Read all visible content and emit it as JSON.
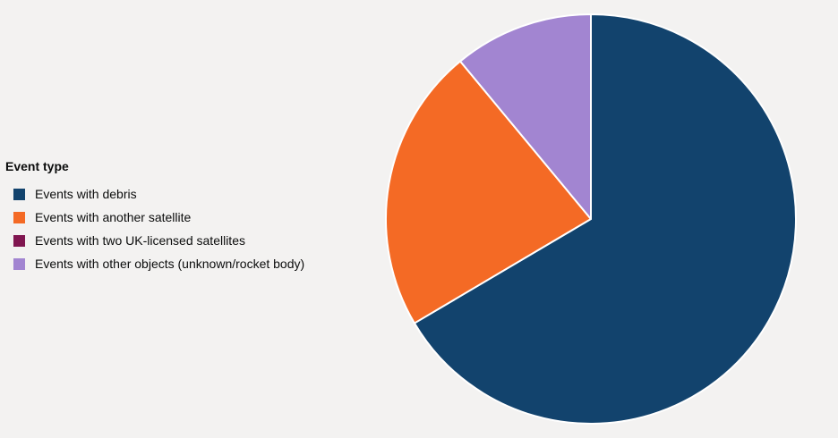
{
  "chart_data": {
    "type": "pie",
    "title": "",
    "legend_title": "Event type",
    "legend_placement": "left",
    "categories": [
      "Events with debris",
      "Events with another satellite",
      "Events with two UK-licensed satellites",
      "Events with other objects (unknown/rocket body)"
    ],
    "values": [
      66.5,
      22.5,
      0,
      11.0
    ],
    "colors": [
      "#12436d",
      "#f46a25",
      "#801650",
      "#a285d1"
    ]
  }
}
